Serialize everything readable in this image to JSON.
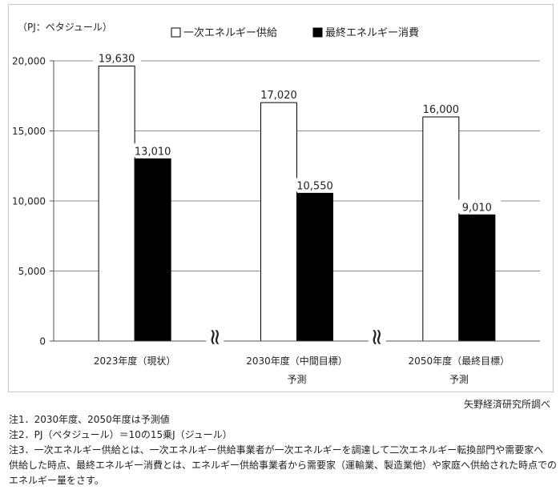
{
  "chart_data": {
    "type": "bar",
    "unit_label": "（PJ：ペタジュール）",
    "categories": [
      "2023年度（現状）",
      "2030年度（中間目標）",
      "2050年度（最終目標）"
    ],
    "category_sublabels": [
      "",
      "予測",
      "予測"
    ],
    "series": [
      {
        "name": "一次エネルギー供給",
        "values": [
          19630,
          17020,
          16000
        ],
        "labels": [
          "19,630",
          "17,020",
          "16,000"
        ],
        "color": "#ffffff"
      },
      {
        "name": "最終エネルギー消費",
        "values": [
          13010,
          10550,
          9010
        ],
        "labels": [
          "13,010",
          "10,550",
          "9,010"
        ],
        "color": "#000000"
      }
    ],
    "yticks": [
      0,
      5000,
      10000,
      15000,
      20000
    ],
    "ytick_labels": [
      "0",
      "5,000",
      "10,000",
      "15,000",
      "20,000"
    ],
    "ylim": [
      0,
      20000
    ],
    "grid": true,
    "legend_position": "top",
    "axis_breaks": [
      "≈",
      "≈"
    ]
  },
  "source": "矢野経済研究所調べ",
  "notes": [
    "注1．2030年度、2050年度は予測値",
    "注2．PJ（ペタジュール）＝10の15乗J（ジュール）",
    "注3．一次エネルギー供給とは、一次エネルギー供給事業者が一次エネルギーを調達して二次エネルギー転換部門や需要家へ",
    "供給した時点、最終エネルギー消費とは、エネルギー供給事業者から需要家（運輸業、製造業他）や家庭へ供給された時点での",
    "エネルギー量をさす。"
  ]
}
